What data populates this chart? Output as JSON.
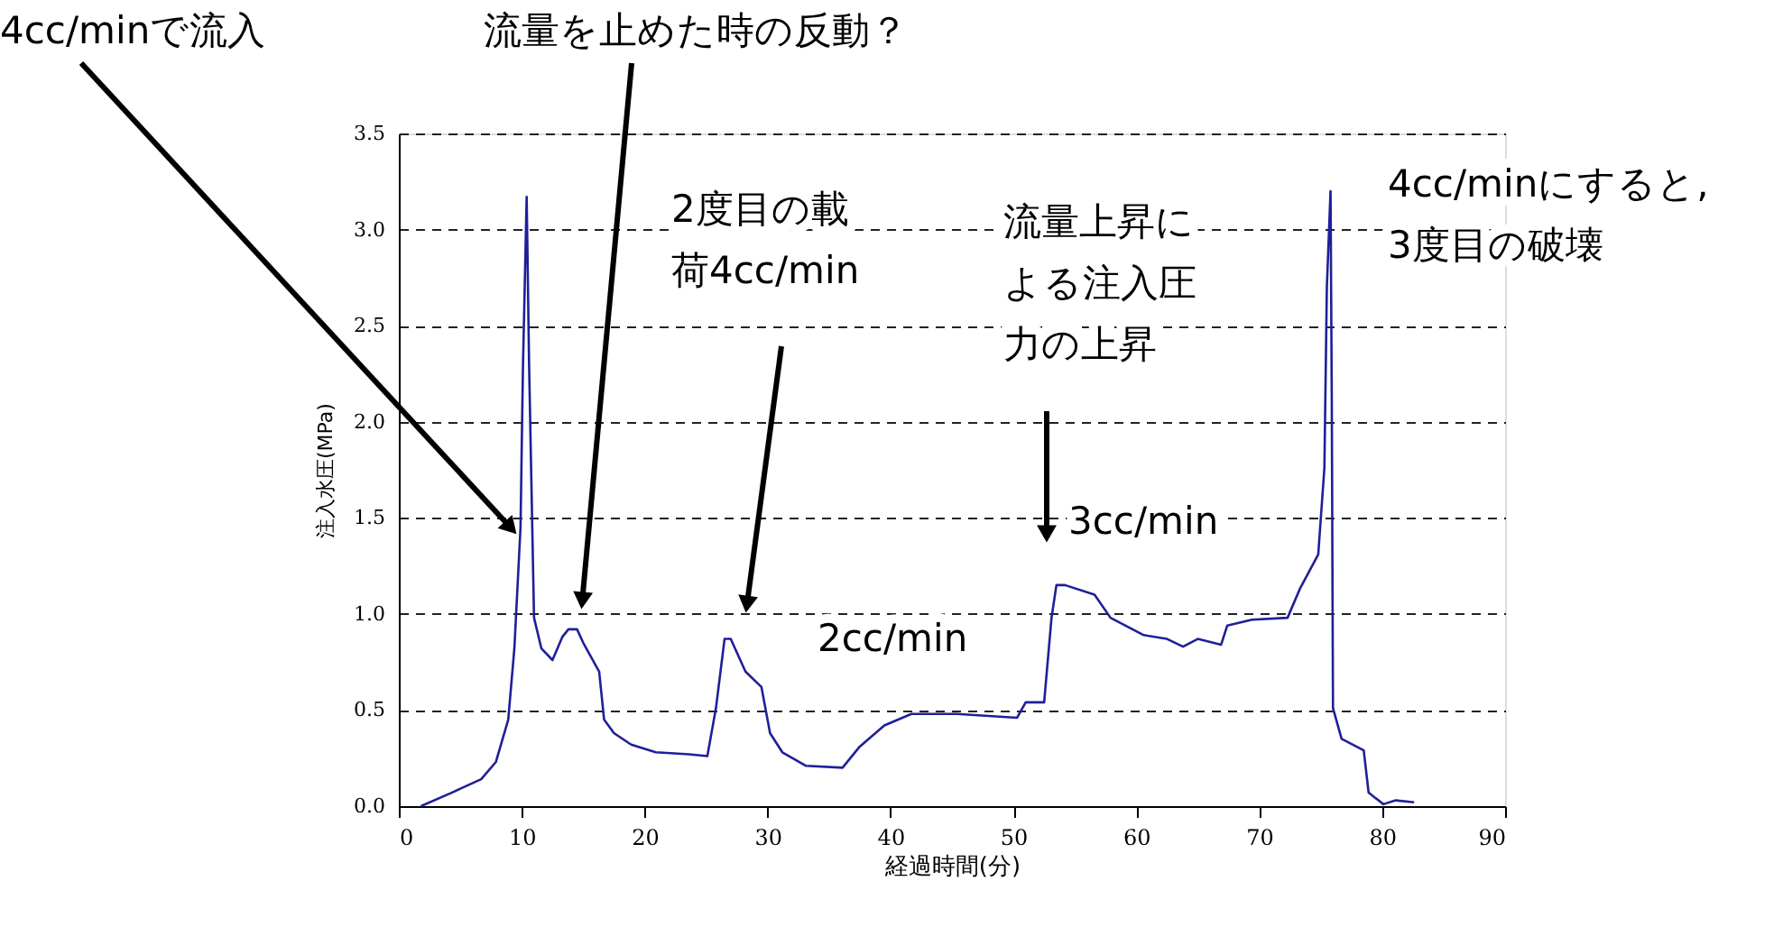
{
  "chart_data": {
    "type": "line",
    "xlabel": "経過時間(分)",
    "ylabel": "注入水圧(MPa)",
    "xlim": [
      0,
      90
    ],
    "xticks": [
      0,
      10,
      20,
      30,
      40,
      50,
      60,
      70,
      80,
      90
    ],
    "ylim": [
      0,
      3.5
    ],
    "yticks": [
      {
        "value": 0,
        "label": "0.0"
      },
      0.5,
      {
        "value": 1,
        "label": "1.0"
      },
      1.5,
      {
        "value": 2,
        "label": "2.0"
      },
      2.5,
      {
        "value": 3,
        "label": "3.0"
      },
      3.5
    ],
    "grid": "y",
    "line_style": "solid",
    "marker": "none",
    "series": [
      {
        "color": "#1f1f99",
        "x": [
          1.8,
          4.3,
          6.7,
          7.9,
          8.9,
          9.4,
          9.9,
          10.1,
          10.4,
          10.6,
          11.0,
          11.6,
          12.5,
          13.3,
          13.8,
          14.5,
          15.0,
          16.3,
          16.7,
          17.5,
          18.9,
          20.9,
          23.6,
          25.1,
          25.8,
          26.5,
          27.0,
          28.2,
          29.5,
          30.2,
          31.2,
          33.1,
          36.1,
          37.5,
          39.5,
          41.7,
          45.4,
          50.3,
          51.0,
          52.5,
          53.1,
          53.5,
          54.2,
          56.6,
          57.9,
          60.6,
          62.5,
          63.8,
          65.0,
          66.9,
          67.4,
          69.4,
          72.3,
          73.3,
          74.8,
          75.3,
          75.5,
          75.8,
          75.9,
          76.0,
          76.7,
          78.5,
          78.9,
          80.1,
          81.1,
          82.6
        ],
        "values": [
          0,
          0.07,
          0.14,
          0.23,
          0.45,
          0.82,
          1.45,
          2.29,
          3.17,
          2.29,
          0.98,
          0.82,
          0.76,
          0.88,
          0.92,
          0.92,
          0.85,
          0.7,
          0.45,
          0.38,
          0.32,
          0.28,
          0.27,
          0.26,
          0.51,
          0.87,
          0.87,
          0.7,
          0.62,
          0.38,
          0.28,
          0.21,
          0.2,
          0.31,
          0.42,
          0.48,
          0.48,
          0.46,
          0.54,
          0.54,
          0.98,
          1.15,
          1.15,
          1.1,
          0.98,
          0.89,
          0.87,
          0.83,
          0.87,
          0.84,
          0.94,
          0.97,
          0.98,
          1.13,
          1.31,
          1.76,
          2.7,
          3.2,
          2.13,
          0.51,
          0.35,
          0.29,
          0.07,
          0.01,
          0.03,
          0.02
        ]
      }
    ],
    "annotations": [
      {
        "text": "4cc/minで流入",
        "x": 9.8,
        "y": 1.4
      },
      "流量を止めた時の反動？",
      "2度目の載荷4cc/min",
      "流量上昇による注入圧力の上昇",
      "2cc/min",
      "3cc/min",
      "4cc/minにすると,3度目の破壊"
    ]
  }
}
